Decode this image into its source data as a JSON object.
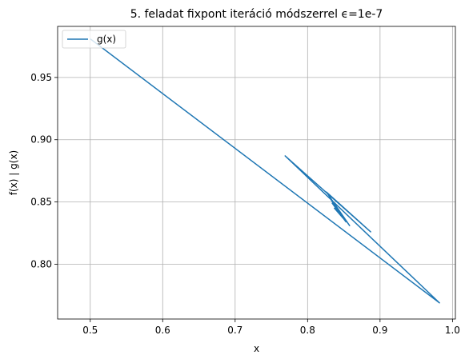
{
  "chart_data": {
    "type": "line",
    "title": "5. feladat fixpont iteráció módszerrel ϵ=1e-7",
    "xlabel": "x",
    "ylabel": "f(x) | g(x)",
    "xlim": [
      0.455,
      1.004
    ],
    "ylim": [
      0.756,
      0.991
    ],
    "xticks": [
      0.5,
      0.6,
      0.7,
      0.8,
      0.9,
      1.0
    ],
    "xtick_labels": [
      "0.5",
      "0.6",
      "0.7",
      "0.8",
      "0.9",
      "1.0"
    ],
    "yticks": [
      0.8,
      0.85,
      0.9,
      0.95
    ],
    "ytick_labels": [
      "0.80",
      "0.85",
      "0.90",
      "0.95"
    ],
    "grid": true,
    "legend_position": "top-left",
    "series": [
      {
        "name": "g(x)",
        "color": "#1f77b4",
        "x": [
          0.5,
          0.982,
          0.769,
          0.887,
          0.826,
          0.858,
          0.831,
          0.853,
          0.834,
          0.849,
          0.837,
          0.845,
          0.841
        ],
        "y": [
          0.981,
          0.769,
          0.887,
          0.826,
          0.858,
          0.831,
          0.853,
          0.834,
          0.849,
          0.837,
          0.845,
          0.841,
          0.843
        ]
      }
    ]
  }
}
